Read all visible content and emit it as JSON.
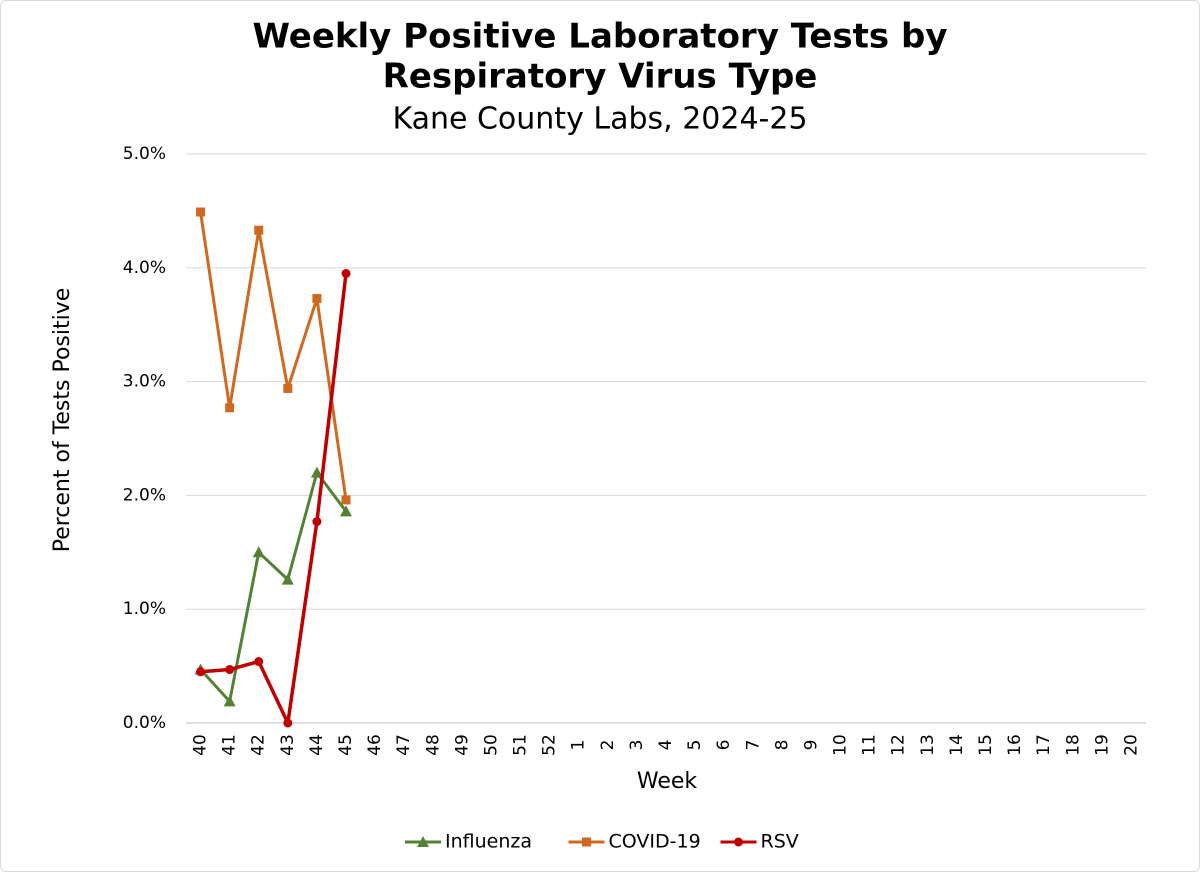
{
  "chart_data": {
    "type": "line",
    "title": [
      "Weekly Positive Laboratory Tests by",
      "Respiratory Virus Type"
    ],
    "subtitle": "Kane County Labs, 2024-25",
    "x_label": "Week",
    "y_label": "Percent of Tests Positive",
    "categories": [
      "40",
      "41",
      "42",
      "43",
      "44",
      "45",
      "46",
      "47",
      "48",
      "49",
      "50",
      "51",
      "52",
      "1",
      "2",
      "3",
      "4",
      "5",
      "6",
      "7",
      "8",
      "9",
      "10",
      "11",
      "12",
      "13",
      "14",
      "15",
      "16",
      "17",
      "18",
      "19",
      "20"
    ],
    "series": [
      {
        "name": "Influenza",
        "color": "#548235",
        "marker": "triangle",
        "values": [
          0.47,
          0.19,
          1.5,
          1.26,
          2.2,
          1.86,
          null,
          null,
          null,
          null,
          null,
          null,
          null,
          null,
          null,
          null,
          null,
          null,
          null,
          null,
          null,
          null,
          null,
          null,
          null,
          null,
          null,
          null,
          null,
          null,
          null,
          null,
          null
        ]
      },
      {
        "name": "COVID-19",
        "color": "#d0691f",
        "marker": "square",
        "values": [
          4.49,
          2.77,
          4.33,
          2.94,
          3.73,
          1.96,
          null,
          null,
          null,
          null,
          null,
          null,
          null,
          null,
          null,
          null,
          null,
          null,
          null,
          null,
          null,
          null,
          null,
          null,
          null,
          null,
          null,
          null,
          null,
          null,
          null,
          null,
          null
        ]
      },
      {
        "name": "RSV",
        "color": "#c00000",
        "marker": "circle",
        "values": [
          0.45,
          0.47,
          0.54,
          0,
          1.77,
          3.95,
          null,
          null,
          null,
          null,
          null,
          null,
          null,
          null,
          null,
          null,
          null,
          null,
          null,
          null,
          null,
          null,
          null,
          null,
          null,
          null,
          null,
          null,
          null,
          null,
          null,
          null,
          null
        ]
      }
    ],
    "ylim": [
      0,
      5
    ],
    "yticks": [
      {
        "value": 0,
        "label": "0.0%"
      },
      {
        "value": 1,
        "label": "1.0%"
      },
      {
        "value": 2,
        "label": "2.0%"
      },
      {
        "value": 3,
        "label": "3.0%"
      },
      {
        "value": 4,
        "label": "4.0%"
      },
      {
        "value": 5,
        "label": "5.0%"
      }
    ],
    "grid": true,
    "legend": "bottom"
  }
}
